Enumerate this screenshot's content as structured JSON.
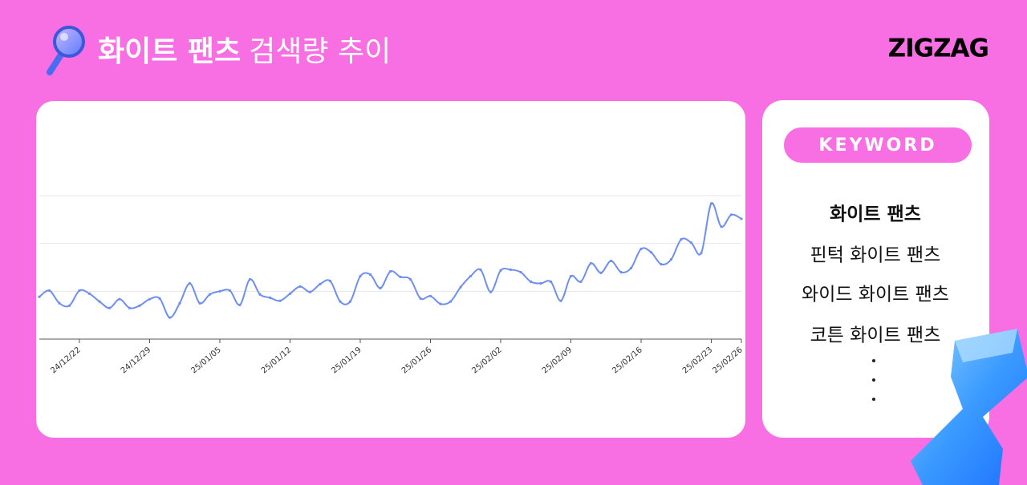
{
  "header": {
    "keyword": "화이트 팬츠",
    "title": "검색량 추이",
    "brand": "ZIGZAG"
  },
  "keyword_panel": {
    "heading": "KEYWORD",
    "items": [
      "화이트 팬츠",
      "핀턱 화이트 팬츠",
      "와이드 화이트 팬츠",
      "코튼 화이트 팬츠"
    ]
  },
  "chart_data": {
    "type": "line",
    "categories": [
      null,
      null,
      null,
      null,
      "24/12/22",
      null,
      null,
      null,
      null,
      null,
      null,
      "24/12/29",
      null,
      null,
      null,
      null,
      null,
      null,
      "25/01/05",
      null,
      null,
      null,
      null,
      null,
      null,
      "25/01/12",
      null,
      null,
      null,
      null,
      null,
      null,
      "25/01/19",
      null,
      null,
      null,
      null,
      null,
      null,
      "25/01/26",
      null,
      null,
      null,
      null,
      null,
      null,
      "25/02/02",
      null,
      null,
      null,
      null,
      null,
      null,
      "25/02/09",
      null,
      null,
      null,
      null,
      null,
      null,
      "25/02/16",
      null,
      null,
      null,
      null,
      null,
      null,
      "25/02/23",
      null,
      null,
      "25/02/26"
    ],
    "series": [
      {
        "name": "화이트 팬츠",
        "color": "#6f8ff0",
        "values": [
          17.7,
          20.3,
          15,
          14,
          20.3,
          19,
          15.7,
          13,
          16.7,
          13,
          14,
          16.7,
          17,
          9,
          15,
          23.3,
          15,
          18.7,
          20,
          20.3,
          14.3,
          25,
          18.7,
          17.3,
          16,
          19,
          22,
          19.7,
          23,
          24.3,
          15.7,
          15.7,
          26.3,
          27,
          21.3,
          28.3,
          26,
          25,
          17,
          18,
          14.7,
          15.7,
          21.7,
          26.3,
          29,
          19.7,
          28.7,
          29,
          28,
          24,
          23.3,
          24,
          16,
          26.3,
          24,
          31.7,
          27.7,
          32.7,
          28,
          29.7,
          37.7,
          36.3,
          31.3,
          33.3,
          41.7,
          40.3,
          36,
          56.7,
          47,
          52,
          50.3
        ]
      }
    ],
    "ylim": [
      0,
      60
    ],
    "yticks": [
      0,
      20,
      40,
      60
    ],
    "grid": true
  }
}
